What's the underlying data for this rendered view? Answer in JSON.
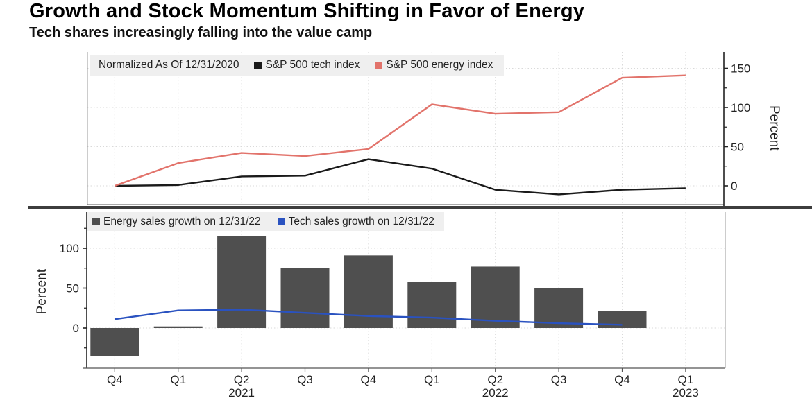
{
  "title": "Growth and Stock Momentum Shifting in Favor of Energy",
  "subtitle": "Tech shares increasingly falling into the value camp",
  "top_axis_label": "Percent",
  "bottom_axis_label": "Percent",
  "top_legend": {
    "note": "Normalized As Of 12/31/2020",
    "series1": "S&P 500 tech index",
    "series2": "S&P 500 energy index"
  },
  "bottom_legend": {
    "series1": "Energy sales growth on 12/31/22",
    "series2": "Tech sales growth on 12/31/22"
  },
  "colors": {
    "tech_line": "#1a1a1a",
    "energy_line": "#e2736b",
    "energy_bar": "#4f4f4f",
    "tech_sales_line": "#2a52c0",
    "grid": "#d9d9d9",
    "axis_dark": "#222222",
    "axis_light": "#999999",
    "divider": "#3d3d3d",
    "legend_bg": "#efefef"
  },
  "chart_data": [
    {
      "type": "line",
      "panel": "top",
      "note": "Normalized As Of 12/31/2020",
      "categories": [
        "Q4 2020",
        "Q1 2021",
        "Q2 2021",
        "Q3 2021",
        "Q4 2021",
        "Q1 2022",
        "Q2 2022",
        "Q3 2022",
        "Q4 2022",
        "Q1 2023"
      ],
      "series": [
        {
          "name": "S&P 500 tech index",
          "color_key": "tech_line",
          "values": [
            0,
            1,
            12,
            13,
            34,
            22,
            -5,
            -11,
            -5,
            -3
          ]
        },
        {
          "name": "S&P 500 energy index",
          "color_key": "energy_line",
          "values": [
            0,
            29,
            42,
            38,
            47,
            104,
            92,
            94,
            138,
            141
          ]
        }
      ],
      "ylabel": "Percent",
      "yticks": [
        0,
        50,
        100,
        150
      ],
      "yticks_minor": [
        25,
        75,
        125
      ],
      "ylim": [
        -24,
        171
      ],
      "axis_side": "right",
      "grid": true,
      "legend_position": "top-left"
    },
    {
      "type": "bar",
      "panel": "bottom",
      "categories": [
        "Q4",
        "Q1",
        "Q2",
        "Q3",
        "Q4",
        "Q1",
        "Q2",
        "Q3",
        "Q4",
        "Q1"
      ],
      "year_labels": [
        {
          "index": 2,
          "label": "2021"
        },
        {
          "index": 6,
          "label": "2022"
        },
        {
          "index": 9,
          "label": "2023"
        }
      ],
      "series": [
        {
          "name": "Energy sales growth on 12/31/22",
          "kind": "bar",
          "color_key": "energy_bar",
          "values": [
            -35,
            2,
            115,
            75,
            91,
            58,
            77,
            50,
            21,
            null
          ]
        },
        {
          "name": "Tech sales growth on 12/31/22",
          "kind": "line",
          "color_key": "tech_sales_line",
          "values": [
            11,
            22,
            23,
            19,
            15,
            13,
            9,
            6,
            4,
            null
          ]
        }
      ],
      "ylabel": "Percent",
      "yticks": [
        0,
        50,
        100
      ],
      "yticks_minor": [
        -25,
        25,
        75,
        125
      ],
      "ylim": [
        -50,
        146
      ],
      "axis_side": "left",
      "grid": true,
      "legend_position": "top-left"
    }
  ]
}
